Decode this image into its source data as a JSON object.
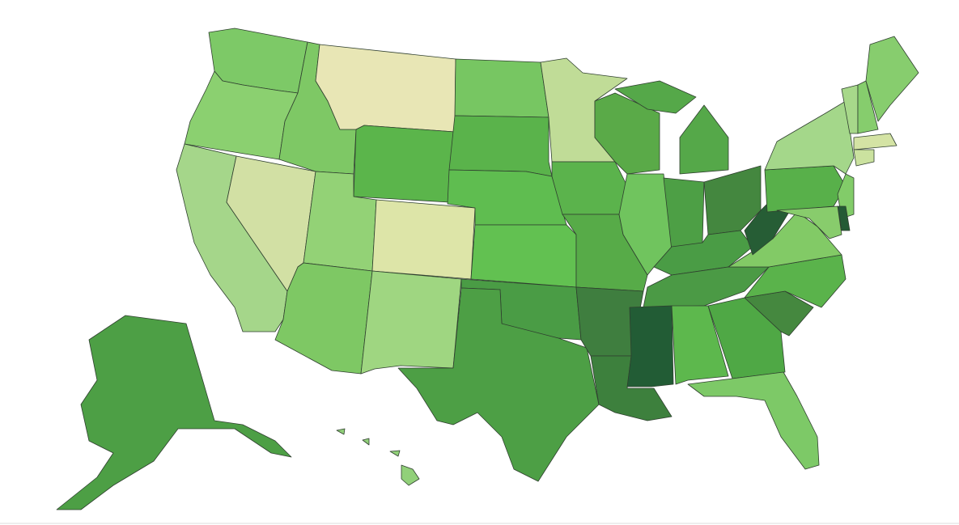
{
  "map": {
    "regions": [
      {
        "color": "#7dc967"
      },
      {
        "color": "#8bd070"
      },
      {
        "color": "#a5d68a"
      },
      {
        "color": "#d2e0a4"
      },
      {
        "color": "#7ec865"
      },
      {
        "color": "#e8e6b5"
      },
      {
        "color": "#5bb54b"
      },
      {
        "color": "#93d276"
      },
      {
        "color": "#dde5a8"
      },
      {
        "color": "#7ec864"
      },
      {
        "color": "#9fd681"
      },
      {
        "color": "#77c662"
      },
      {
        "color": "#5ab34b"
      },
      {
        "color": "#5fbd50"
      },
      {
        "color": "#62c151"
      },
      {
        "color": "#4a9c45"
      },
      {
        "color": "#4d9f45"
      },
      {
        "color": "#c0dc97"
      },
      {
        "color": "#5bb34c"
      },
      {
        "color": "#57ab48"
      },
      {
        "color": "#3f7e3f"
      },
      {
        "color": "#3d803d"
      },
      {
        "color": "#5aaa48"
      },
      {
        "color": "#70c45e"
      },
      {
        "color": "#55a849"
      },
      {
        "color": "#4d9f45"
      },
      {
        "color": "#44873f"
      },
      {
        "color": "#4a9c45"
      },
      {
        "color": "#4b9a45"
      },
      {
        "color": "#225c35"
      },
      {
        "color": "#5db84d"
      },
      {
        "color": "#4fa845"
      },
      {
        "color": "#7dc967"
      },
      {
        "color": "#45883f"
      },
      {
        "color": "#5ab34b"
      },
      {
        "color": "#82ca66"
      },
      {
        "color": "#265d35"
      },
      {
        "color": "#58b04a"
      },
      {
        "color": "#a4d78a"
      },
      {
        "color": "#82cc69"
      },
      {
        "color": "#245a35"
      },
      {
        "color": "#88cc6c"
      },
      {
        "color": "#d4e3a4"
      },
      {
        "color": "#cbe29f"
      },
      {
        "color": "#a7d88a"
      },
      {
        "color": "#86cd6d"
      },
      {
        "color": "#87cd6e"
      },
      {
        "color": "#4d9f45"
      },
      {
        "color": "#91d079"
      }
    ]
  }
}
